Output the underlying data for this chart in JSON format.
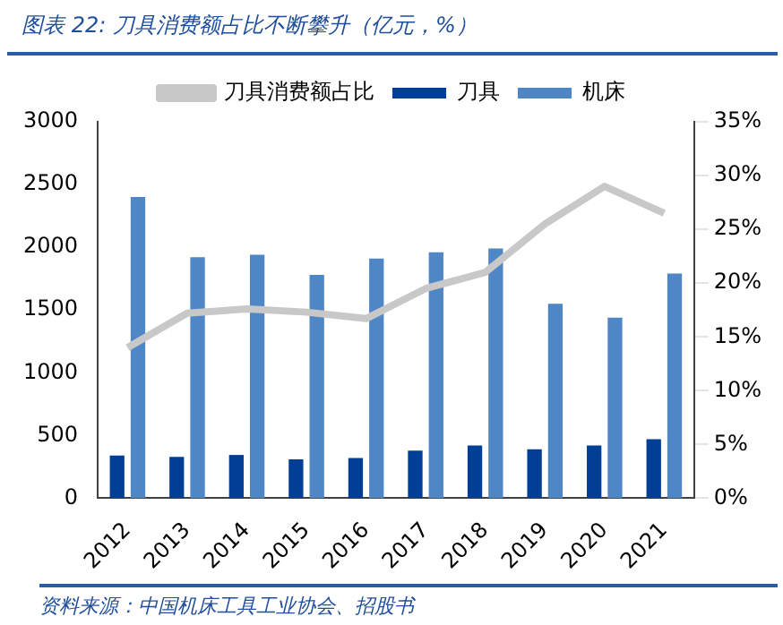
{
  "chart_data": {
    "type": "bar",
    "title": "图表 22: 刀具消费额占比不断攀升（亿元，%）",
    "categories": [
      "2012",
      "2013",
      "2014",
      "2015",
      "2016",
      "2017",
      "2018",
      "2019",
      "2020",
      "2021"
    ],
    "series": [
      {
        "name": "刀具",
        "color": "#003f95",
        "values": [
          340,
          330,
          345,
          310,
          320,
          380,
          420,
          390,
          420,
          470
        ]
      },
      {
        "name": "机床",
        "color": "#4f86c6",
        "values": [
          2400,
          1920,
          1940,
          1780,
          1910,
          1960,
          1990,
          1550,
          1440,
          1790
        ]
      },
      {
        "name": "刀具消费额占比",
        "type": "line",
        "axis": "y2",
        "color": "#c8c8c8",
        "values": [
          14,
          17.2,
          17.6,
          17.3,
          16.7,
          19.5,
          21,
          25.5,
          29,
          26.5
        ]
      }
    ],
    "ylim": [
      0,
      3000
    ],
    "yticks": [
      0,
      500,
      1000,
      1500,
      2000,
      2500,
      3000
    ],
    "y2lim": [
      0,
      35
    ],
    "y2ticks": [
      {
        "value": 0,
        "label": "0%"
      },
      {
        "value": 5,
        "label": "5%"
      },
      {
        "value": 10,
        "label": "10%"
      },
      {
        "value": 15,
        "label": "15%"
      },
      {
        "value": 20,
        "label": "20%"
      },
      {
        "value": 25,
        "label": "25%"
      },
      {
        "value": 30,
        "label": "30%"
      },
      {
        "value": 35,
        "label": "35%"
      }
    ],
    "grid": false,
    "legend": "top",
    "marker": "none",
    "annotations": [
      "资料来源：中国机床工具工业协会、招股书"
    ]
  }
}
